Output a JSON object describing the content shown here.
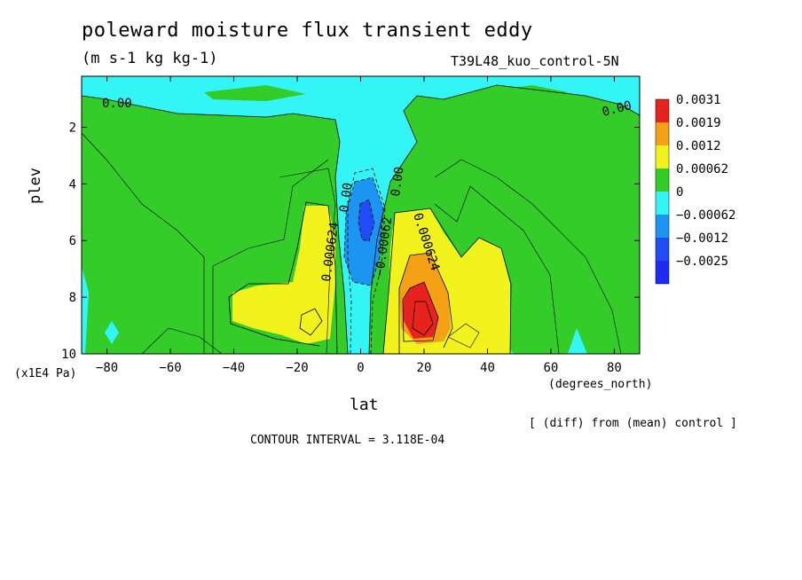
{
  "chart_data": {
    "type": "heatmap",
    "title": "poleward moisture flux transient eddy",
    "subtitle": "(m s-1 kg kg-1)",
    "dataset_label": "T39L48_kuo_control-5N",
    "xlabel": "lat",
    "xunit": "(degrees_north)",
    "ylabel": "plev",
    "yunit": "(x1E4 Pa)",
    "xlim": [
      -88,
      88
    ],
    "ylim": [
      10,
      0.2
    ],
    "x_ticks": [
      -80,
      -60,
      -40,
      -20,
      0,
      20,
      40,
      60,
      80
    ],
    "x_tick_labels": [
      "−80",
      "−60",
      "−40",
      "−20",
      "0",
      "20",
      "40",
      "60",
      "80"
    ],
    "y_ticks": [
      2,
      4,
      6,
      8,
      10
    ],
    "y_tick_labels": [
      "2",
      "4",
      "6",
      "8",
      "10"
    ],
    "note": "[ (diff) from (mean) control ]",
    "contour_interval": "CONTOUR INTERVAL = 3.118E-04",
    "colorbar": {
      "labels": [
        "0.0031",
        "0.0019",
        "0.0012",
        "0.00062",
        "0",
        "−0.00062",
        "−0.0012",
        "−0.0025"
      ],
      "colors": [
        "#e8221c",
        "#f5a116",
        "#f2f21d",
        "#33cc29",
        "#33f5f5",
        "#1c94f2",
        "#1f4cf5",
        "#1f2bf5"
      ]
    },
    "contour_labels": [
      "0.00",
      "0.00",
      "0.00",
      "0.00",
      "0.000624",
      "−0.00062",
      "0.000624"
    ]
  }
}
